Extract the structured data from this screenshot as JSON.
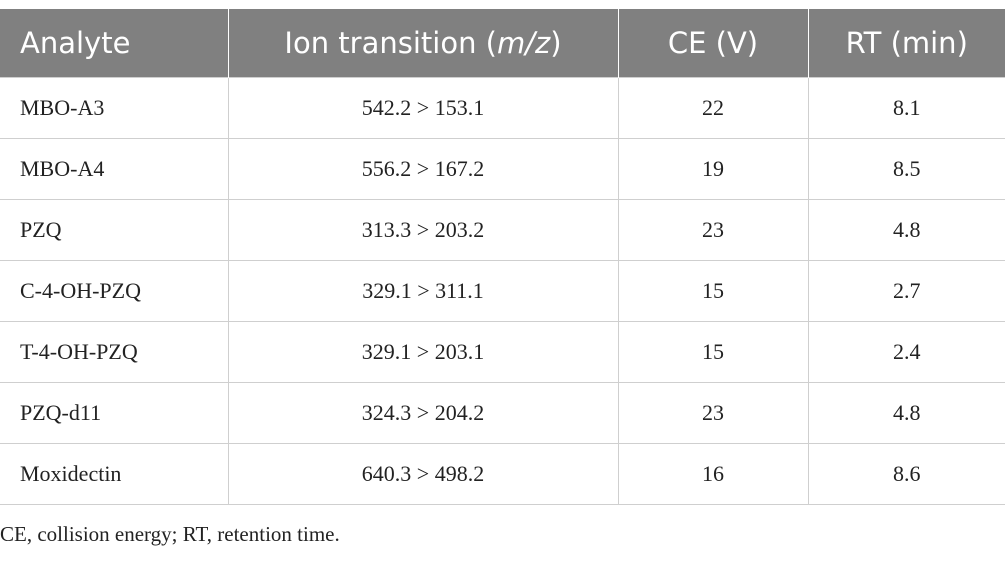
{
  "table": {
    "header": [
      "Analyte",
      [
        "Ion transition (",
        "m/z",
        ")"
      ],
      "CE (V)",
      "RT (min)"
    ],
    "rows": [
      [
        "MBO-A3",
        "542.2 > 153.1",
        22,
        8.1
      ],
      [
        "MBO-A4",
        "556.2 > 167.2",
        19,
        8.5
      ],
      [
        "PZQ",
        "313.3 > 203.2",
        23,
        4.8
      ],
      [
        "C-4-OH-PZQ",
        "329.1 > 311.1",
        15,
        2.7
      ],
      [
        "T-4-OH-PZQ",
        "329.1 > 203.1",
        15,
        2.4
      ],
      [
        "PZQ-d11",
        "324.3 > 204.2",
        23,
        4.8
      ],
      [
        "Moxidectin",
        "640.3 > 498.2",
        16,
        8.6
      ]
    ]
  },
  "footnote": "CE, collision energy; RT, retention time."
}
